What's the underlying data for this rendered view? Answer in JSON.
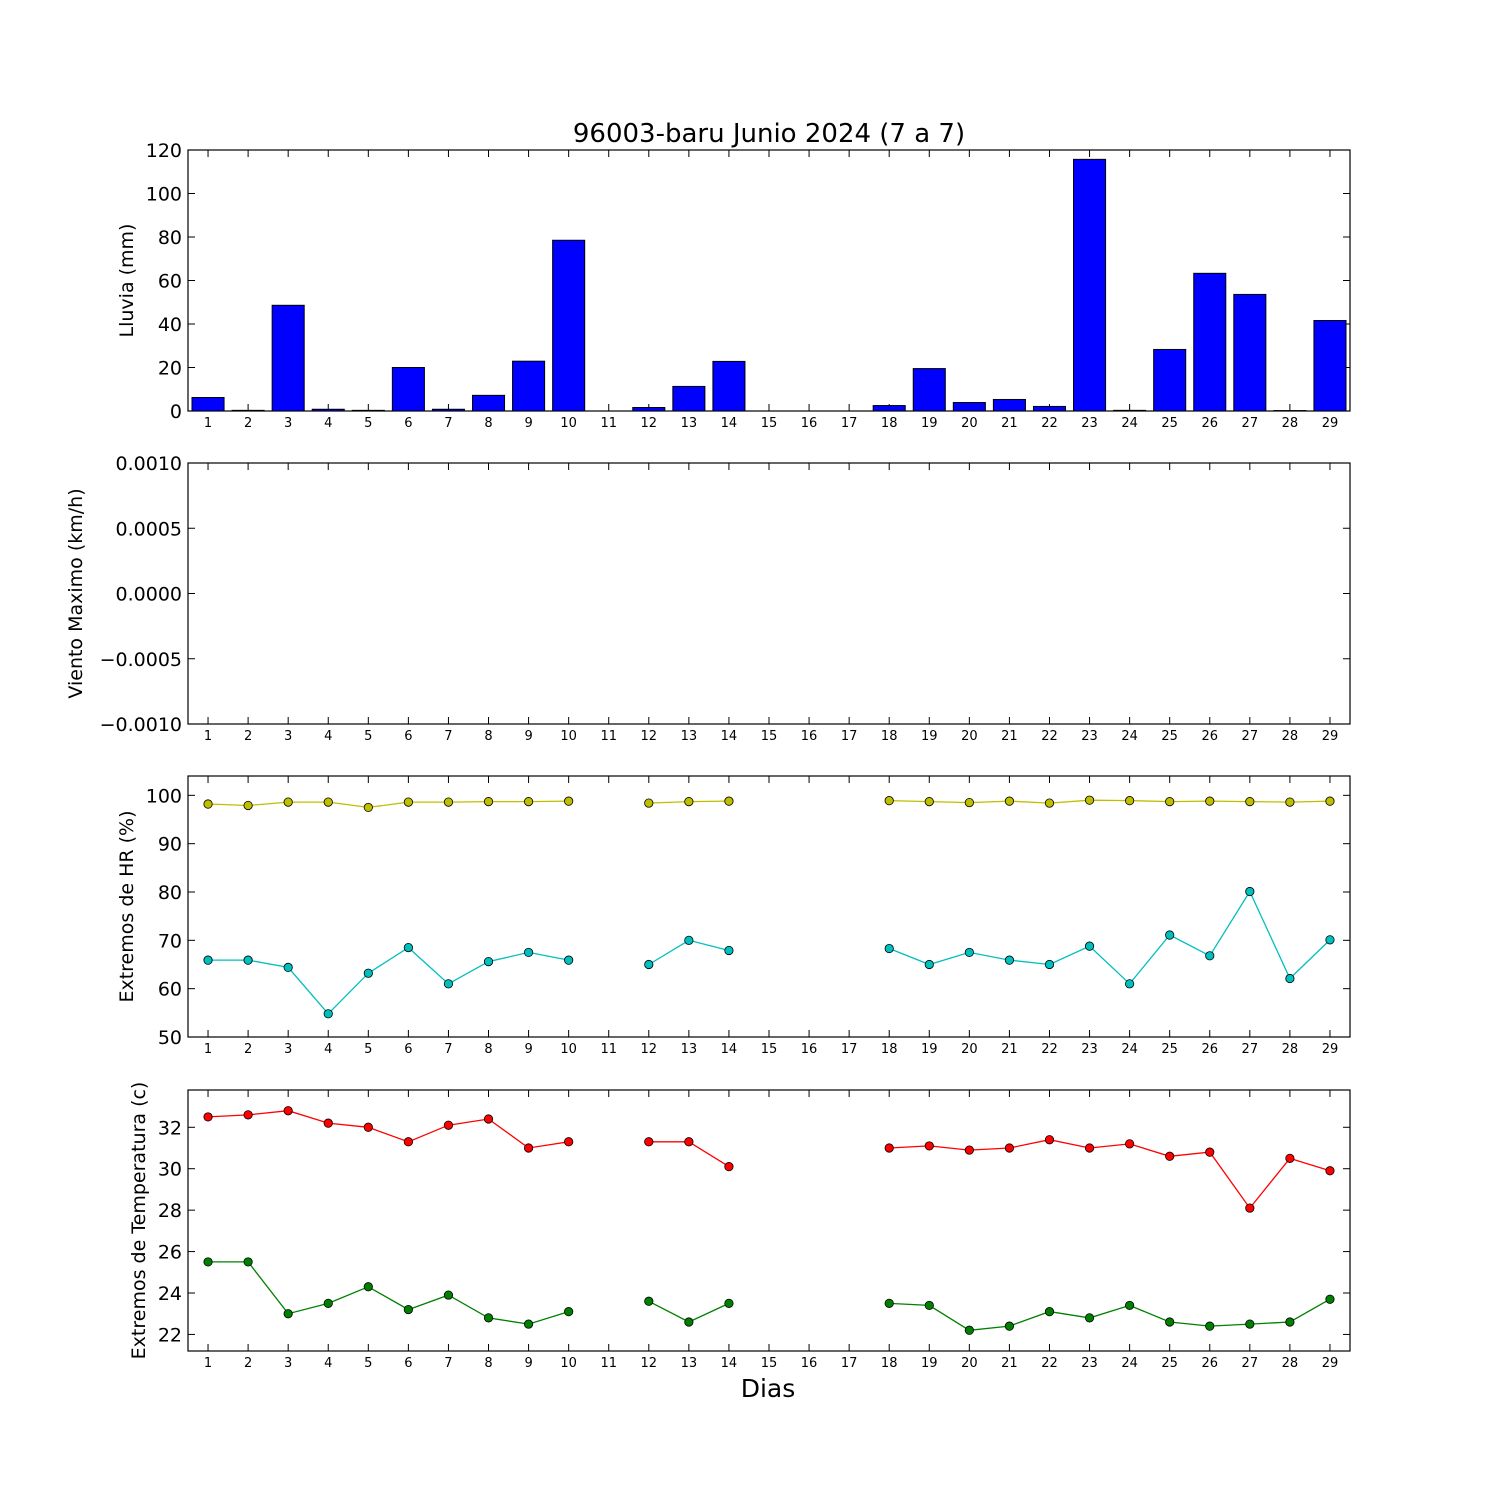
{
  "figure": {
    "title": "96003-baru Junio 2024  (7 a 7)",
    "xlabel": "Dias"
  },
  "chart_data": [
    {
      "type": "bar",
      "ylabel": "Lluvia (mm)",
      "categories": [
        "1",
        "2",
        "3",
        "4",
        "5",
        "6",
        "7",
        "8",
        "9",
        "10",
        "11",
        "12",
        "13",
        "14",
        "15",
        "16",
        "17",
        "18",
        "19",
        "20",
        "21",
        "22",
        "23",
        "24",
        "25",
        "26",
        "27",
        "28",
        "29"
      ],
      "yticks": [
        "0",
        "20",
        "40",
        "60",
        "80",
        "100",
        "120"
      ],
      "ylim": [
        0,
        120
      ],
      "grid": false,
      "series": [
        {
          "color": "#0000ff",
          "values": [
            6.2,
            0.3,
            48.6,
            0.8,
            0.3,
            20.0,
            0.8,
            7.2,
            22.9,
            78.5,
            0,
            1.6,
            11.3,
            22.8,
            0,
            0,
            0,
            2.5,
            19.5,
            3.9,
            5.3,
            2.1,
            115.7,
            0.3,
            28.3,
            63.3,
            53.6,
            0.2,
            41.6
          ]
        }
      ]
    },
    {
      "type": "line",
      "ylabel": "Viento Maximo (km/h)",
      "categories": [
        "1",
        "2",
        "3",
        "4",
        "5",
        "6",
        "7",
        "8",
        "9",
        "10",
        "11",
        "12",
        "13",
        "14",
        "15",
        "16",
        "17",
        "18",
        "19",
        "20",
        "21",
        "22",
        "23",
        "24",
        "25",
        "26",
        "27",
        "28",
        "29"
      ],
      "yticks": [
        "−0.0010",
        "−0.0005",
        "0.0000",
        "0.0005",
        "0.0010"
      ],
      "ylim": [
        -0.001,
        0.001
      ],
      "grid": false,
      "series": []
    },
    {
      "type": "line",
      "ylabel": "Extremos de HR (%)",
      "categories": [
        "1",
        "2",
        "3",
        "4",
        "5",
        "6",
        "7",
        "8",
        "9",
        "10",
        "11",
        "12",
        "13",
        "14",
        "15",
        "16",
        "17",
        "18",
        "19",
        "20",
        "21",
        "22",
        "23",
        "24",
        "25",
        "26",
        "27",
        "28",
        "29"
      ],
      "yticks": [
        "50",
        "60",
        "70",
        "80",
        "90",
        "100"
      ],
      "ylim": [
        50,
        104
      ],
      "grid": false,
      "series": [
        {
          "color": "#bfbf00",
          "values": [
            98.2,
            97.9,
            98.6,
            98.6,
            97.5,
            98.6,
            98.6,
            98.7,
            98.7,
            98.8,
            null,
            98.4,
            98.7,
            98.8,
            null,
            null,
            null,
            98.9,
            98.7,
            98.5,
            98.8,
            98.4,
            99.0,
            98.9,
            98.7,
            98.8,
            98.7,
            98.6,
            98.8
          ]
        },
        {
          "color": "#00bfbf",
          "values": [
            65.9,
            65.9,
            64.4,
            54.8,
            63.2,
            68.5,
            61.0,
            65.6,
            67.5,
            65.9,
            null,
            65.0,
            70.0,
            67.9,
            null,
            null,
            null,
            68.3,
            65.0,
            67.5,
            65.9,
            65.0,
            68.8,
            61.0,
            71.1,
            66.8,
            80.1,
            62.1,
            70.1
          ]
        }
      ]
    },
    {
      "type": "line",
      "ylabel": "Extremos de Temperatura (c)",
      "categories": [
        "1",
        "2",
        "3",
        "4",
        "5",
        "6",
        "7",
        "8",
        "9",
        "10",
        "11",
        "12",
        "13",
        "14",
        "15",
        "16",
        "17",
        "18",
        "19",
        "20",
        "21",
        "22",
        "23",
        "24",
        "25",
        "26",
        "27",
        "28",
        "29"
      ],
      "yticks": [
        "22",
        "24",
        "26",
        "28",
        "30",
        "32"
      ],
      "ylim": [
        21.2,
        33.8
      ],
      "grid": false,
      "series": [
        {
          "color": "#ff0000",
          "values": [
            32.5,
            32.6,
            32.8,
            32.2,
            32.0,
            31.3,
            32.1,
            32.4,
            31.0,
            31.3,
            null,
            31.3,
            31.3,
            30.1,
            null,
            null,
            null,
            31.0,
            31.1,
            30.9,
            31.0,
            31.4,
            31.0,
            31.2,
            30.6,
            30.8,
            28.1,
            30.5,
            29.9
          ]
        },
        {
          "color": "#008000",
          "values": [
            25.5,
            25.5,
            23.0,
            23.5,
            24.3,
            23.2,
            23.9,
            22.8,
            22.5,
            23.1,
            null,
            23.6,
            22.6,
            23.5,
            null,
            null,
            null,
            23.5,
            23.4,
            22.2,
            22.4,
            23.1,
            22.8,
            23.4,
            22.6,
            22.4,
            22.5,
            22.6,
            23.7
          ]
        }
      ]
    }
  ]
}
